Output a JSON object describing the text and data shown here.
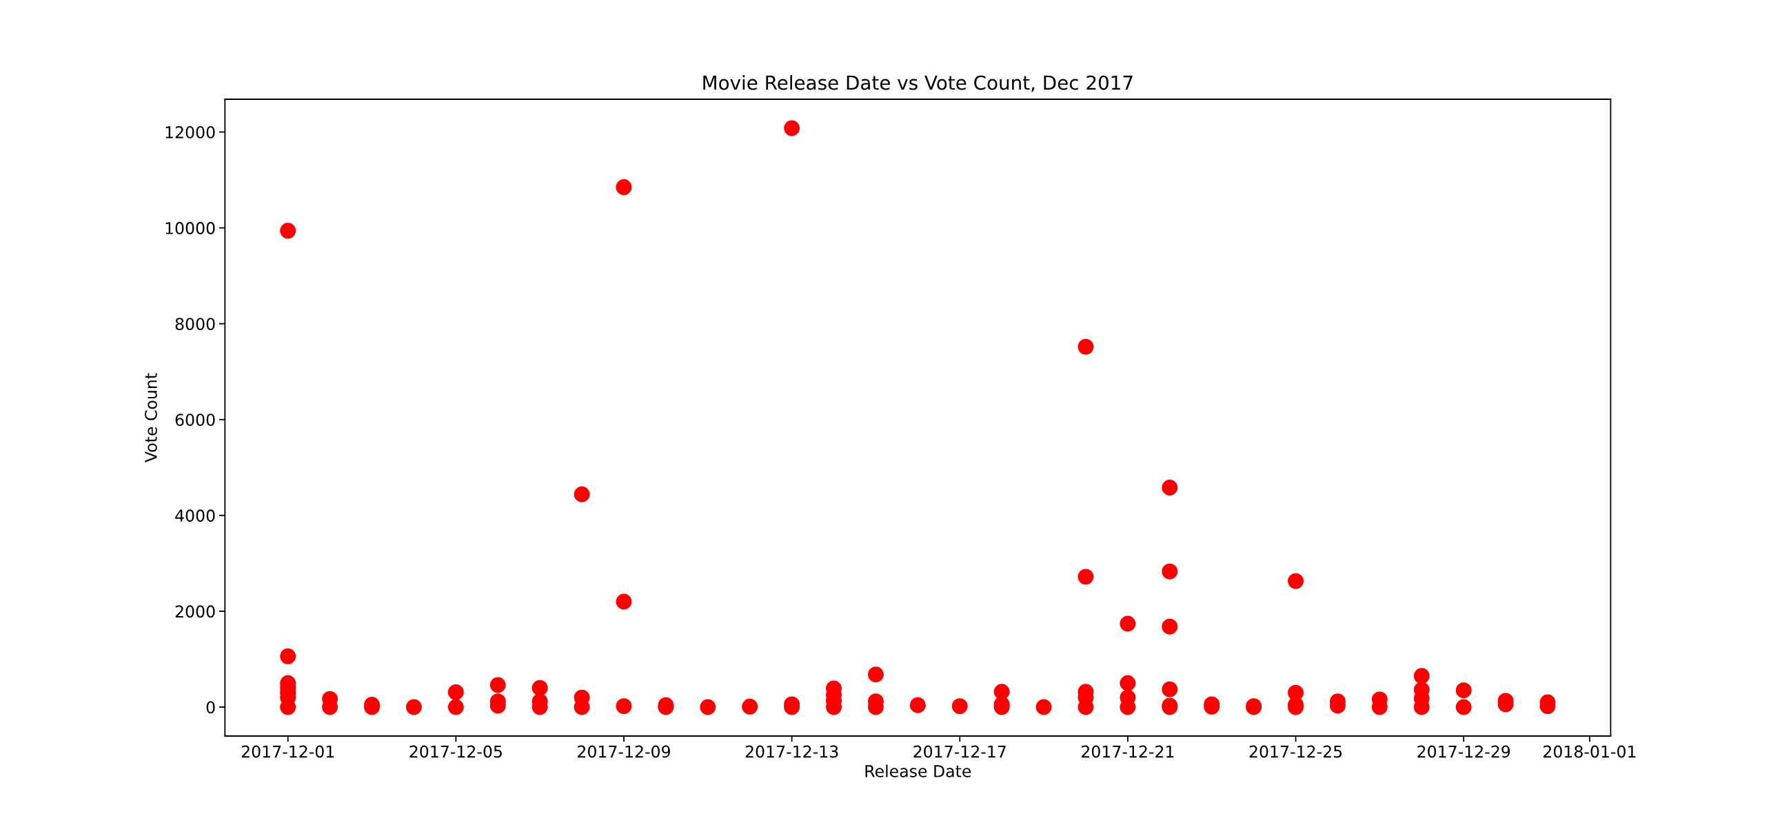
{
  "chart_data": {
    "type": "scatter",
    "title": "Movie Release Date vs Vote Count, Dec 2017",
    "xlabel": "Release Date",
    "ylabel": "Vote Count",
    "series": [
      {
        "color": "#ff0000",
        "x": [
          "2017-12-01",
          "2017-12-01",
          "2017-12-01",
          "2017-12-01",
          "2017-12-01",
          "2017-12-01",
          "2017-12-01",
          "2017-12-02",
          "2017-12-02",
          "2017-12-03",
          "2017-12-03",
          "2017-12-04",
          "2017-12-05",
          "2017-12-05",
          "2017-12-06",
          "2017-12-06",
          "2017-12-06",
          "2017-12-07",
          "2017-12-07",
          "2017-12-07",
          "2017-12-08",
          "2017-12-08",
          "2017-12-08",
          "2017-12-09",
          "2017-12-09",
          "2017-12-09",
          "2017-12-10",
          "2017-12-10",
          "2017-12-11",
          "2017-12-12",
          "2017-12-13",
          "2017-12-13",
          "2017-12-13",
          "2017-12-14",
          "2017-12-14",
          "2017-12-14",
          "2017-12-14",
          "2017-12-15",
          "2017-12-15",
          "2017-12-15",
          "2017-12-16",
          "2017-12-17",
          "2017-12-18",
          "2017-12-18",
          "2017-12-18",
          "2017-12-19",
          "2017-12-20",
          "2017-12-20",
          "2017-12-20",
          "2017-12-20",
          "2017-12-20",
          "2017-12-21",
          "2017-12-21",
          "2017-12-21",
          "2017-12-21",
          "2017-12-22",
          "2017-12-22",
          "2017-12-22",
          "2017-12-22",
          "2017-12-22",
          "2017-12-22",
          "2017-12-23",
          "2017-12-23",
          "2017-12-24",
          "2017-12-24",
          "2017-12-25",
          "2017-12-25",
          "2017-12-25",
          "2017-12-25",
          "2017-12-26",
          "2017-12-26",
          "2017-12-27",
          "2017-12-27",
          "2017-12-28",
          "2017-12-28",
          "2017-12-28",
          "2017-12-28",
          "2017-12-29",
          "2017-12-29",
          "2017-12-30",
          "2017-12-30",
          "2017-12-31",
          "2017-12-31"
        ],
        "values": [
          9940,
          1060,
          500,
          400,
          300,
          200,
          0,
          170,
          0,
          50,
          0,
          0,
          310,
          0,
          460,
          120,
          30,
          400,
          120,
          0,
          4440,
          200,
          0,
          10850,
          2200,
          20,
          40,
          0,
          0,
          10,
          12080,
          60,
          0,
          390,
          250,
          130,
          0,
          680,
          120,
          0,
          40,
          20,
          320,
          60,
          0,
          0,
          7520,
          2720,
          320,
          200,
          0,
          1740,
          500,
          200,
          0,
          4580,
          2830,
          1680,
          370,
          30,
          0,
          60,
          10,
          20,
          0,
          2630,
          300,
          50,
          0,
          120,
          30,
          160,
          0,
          650,
          360,
          180,
          0,
          350,
          0,
          130,
          60,
          100,
          20
        ]
      }
    ],
    "marker": "circle",
    "xlim": [
      "2017-11-29T12:00",
      "2018-01-01T12:00"
    ],
    "xticks": [
      {
        "value": "2017-12-01",
        "label": "2017-12-01"
      },
      {
        "value": "2017-12-05",
        "label": "2017-12-05"
      },
      {
        "value": "2017-12-09",
        "label": "2017-12-09"
      },
      {
        "value": "2017-12-13",
        "label": "2017-12-13"
      },
      {
        "value": "2017-12-17",
        "label": "2017-12-17"
      },
      {
        "value": "2017-12-21",
        "label": "2017-12-21"
      },
      {
        "value": "2017-12-25",
        "label": "2017-12-25"
      },
      {
        "value": "2017-12-29",
        "label": "2017-12-29"
      },
      {
        "value": "2018-01-01",
        "label": "2018-01-01"
      }
    ],
    "ylim": [
      -604,
      12684
    ],
    "yticks": [
      0,
      2000,
      4000,
      6000,
      8000,
      10000,
      12000
    ],
    "grid": false
  }
}
